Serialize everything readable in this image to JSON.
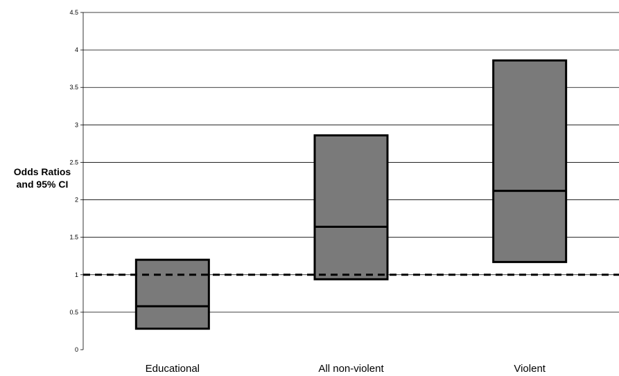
{
  "chart_data": {
    "type": "box",
    "title": "",
    "ylabel": [
      "Odds Ratios",
      "and 95% CI"
    ],
    "xlabel": "",
    "ylim": [
      0,
      4.5
    ],
    "yticks": [
      0,
      0.5,
      1,
      1.5,
      2,
      2.5,
      3,
      3.5,
      4,
      4.5
    ],
    "ytick_labels": [
      "0",
      "0.5",
      "1",
      "1.5",
      "2",
      "2.5",
      "3",
      "3.5",
      "4",
      "4.5"
    ],
    "grid": true,
    "reference_line": {
      "y": 1,
      "style": "dashed"
    },
    "categories": [
      "Educational",
      "All non-violent",
      "Violent"
    ],
    "boxes": [
      {
        "category": "Educational",
        "low": 0.28,
        "estimate": 0.58,
        "high": 1.2
      },
      {
        "category": "All non-violent",
        "low": 0.94,
        "estimate": 1.64,
        "high": 2.86
      },
      {
        "category": "Violent",
        "low": 1.17,
        "estimate": 2.12,
        "high": 3.86
      }
    ],
    "colors": {
      "box_fill": "#7a7a7a",
      "box_stroke": "#000000",
      "grid": "#000000"
    }
  }
}
